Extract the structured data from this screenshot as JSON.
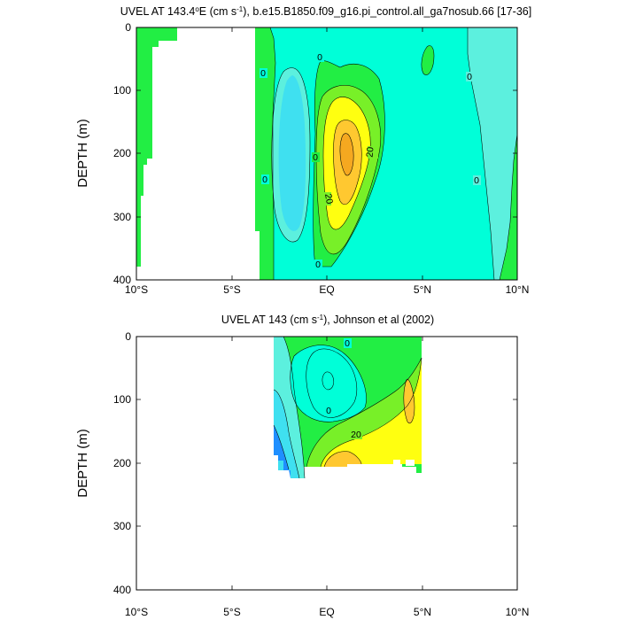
{
  "colors": {
    "blue": "#1f8fff",
    "light_blue": "#3fe0f0",
    "cyan": "#5cf0de",
    "aqua": "#00ffd8",
    "green": "#22ee44",
    "light_green": "#78f028",
    "yellow": "#ffff10",
    "gold": "#ffc830"
  },
  "chart_data": [
    {
      "type": "contour",
      "title": "UVEL AT 143.4°E (cm s⁻¹), b.e15.B1850.f09_g16.pi_control.all_ga7nosub.66 [17-36]",
      "title_parts": {
        "a": "UVEL AT 143.4",
        "deg": "o",
        "b": "E (cm s",
        "exp": "-1",
        "c": "), b.e15.B1850.f09_g16.pi_control.all_ga7nosub.66 [17-36]"
      },
      "ylabel": "DEPTH (m)",
      "x_ticks": [
        "10°S",
        "5°S",
        "EQ",
        "5°N",
        "10°N"
      ],
      "y_ticks": [
        "0",
        "100",
        "200",
        "300",
        "400"
      ],
      "xlim": [
        -10,
        10
      ],
      "ylim": [
        400,
        0
      ],
      "contour_labels": [
        "0",
        "0",
        "0",
        "0",
        "0",
        "0",
        "0",
        "20",
        "20"
      ],
      "core_max_cm_s": 40,
      "core_location": {
        "lat": 1.2,
        "depth_m": 190
      }
    },
    {
      "type": "contour",
      "title": "UVEL AT 143 (cm s⁻¹), Johnson et al (2002)",
      "title_parts": {
        "a": "UVEL AT 143 (cm s",
        "exp": "-1",
        "b": "), Johnson et al (2002)"
      },
      "ylabel": "DEPTH (m)",
      "x_ticks": [
        "10°S",
        "5°S",
        "EQ",
        "5°N",
        "10°N"
      ],
      "y_ticks": [
        "0",
        "100",
        "200",
        "300",
        "400"
      ],
      "xlim": [
        -10,
        10
      ],
      "ylim": [
        400,
        0
      ],
      "data_extent": {
        "lat": [
          -2.8,
          5
        ],
        "depth_m": [
          0,
          225
        ]
      },
      "contour_labels": [
        "0",
        "0",
        "20"
      ],
      "core_max_cm_s": 40,
      "core_location": {
        "lat": 0.5,
        "depth_m": 205
      }
    }
  ]
}
